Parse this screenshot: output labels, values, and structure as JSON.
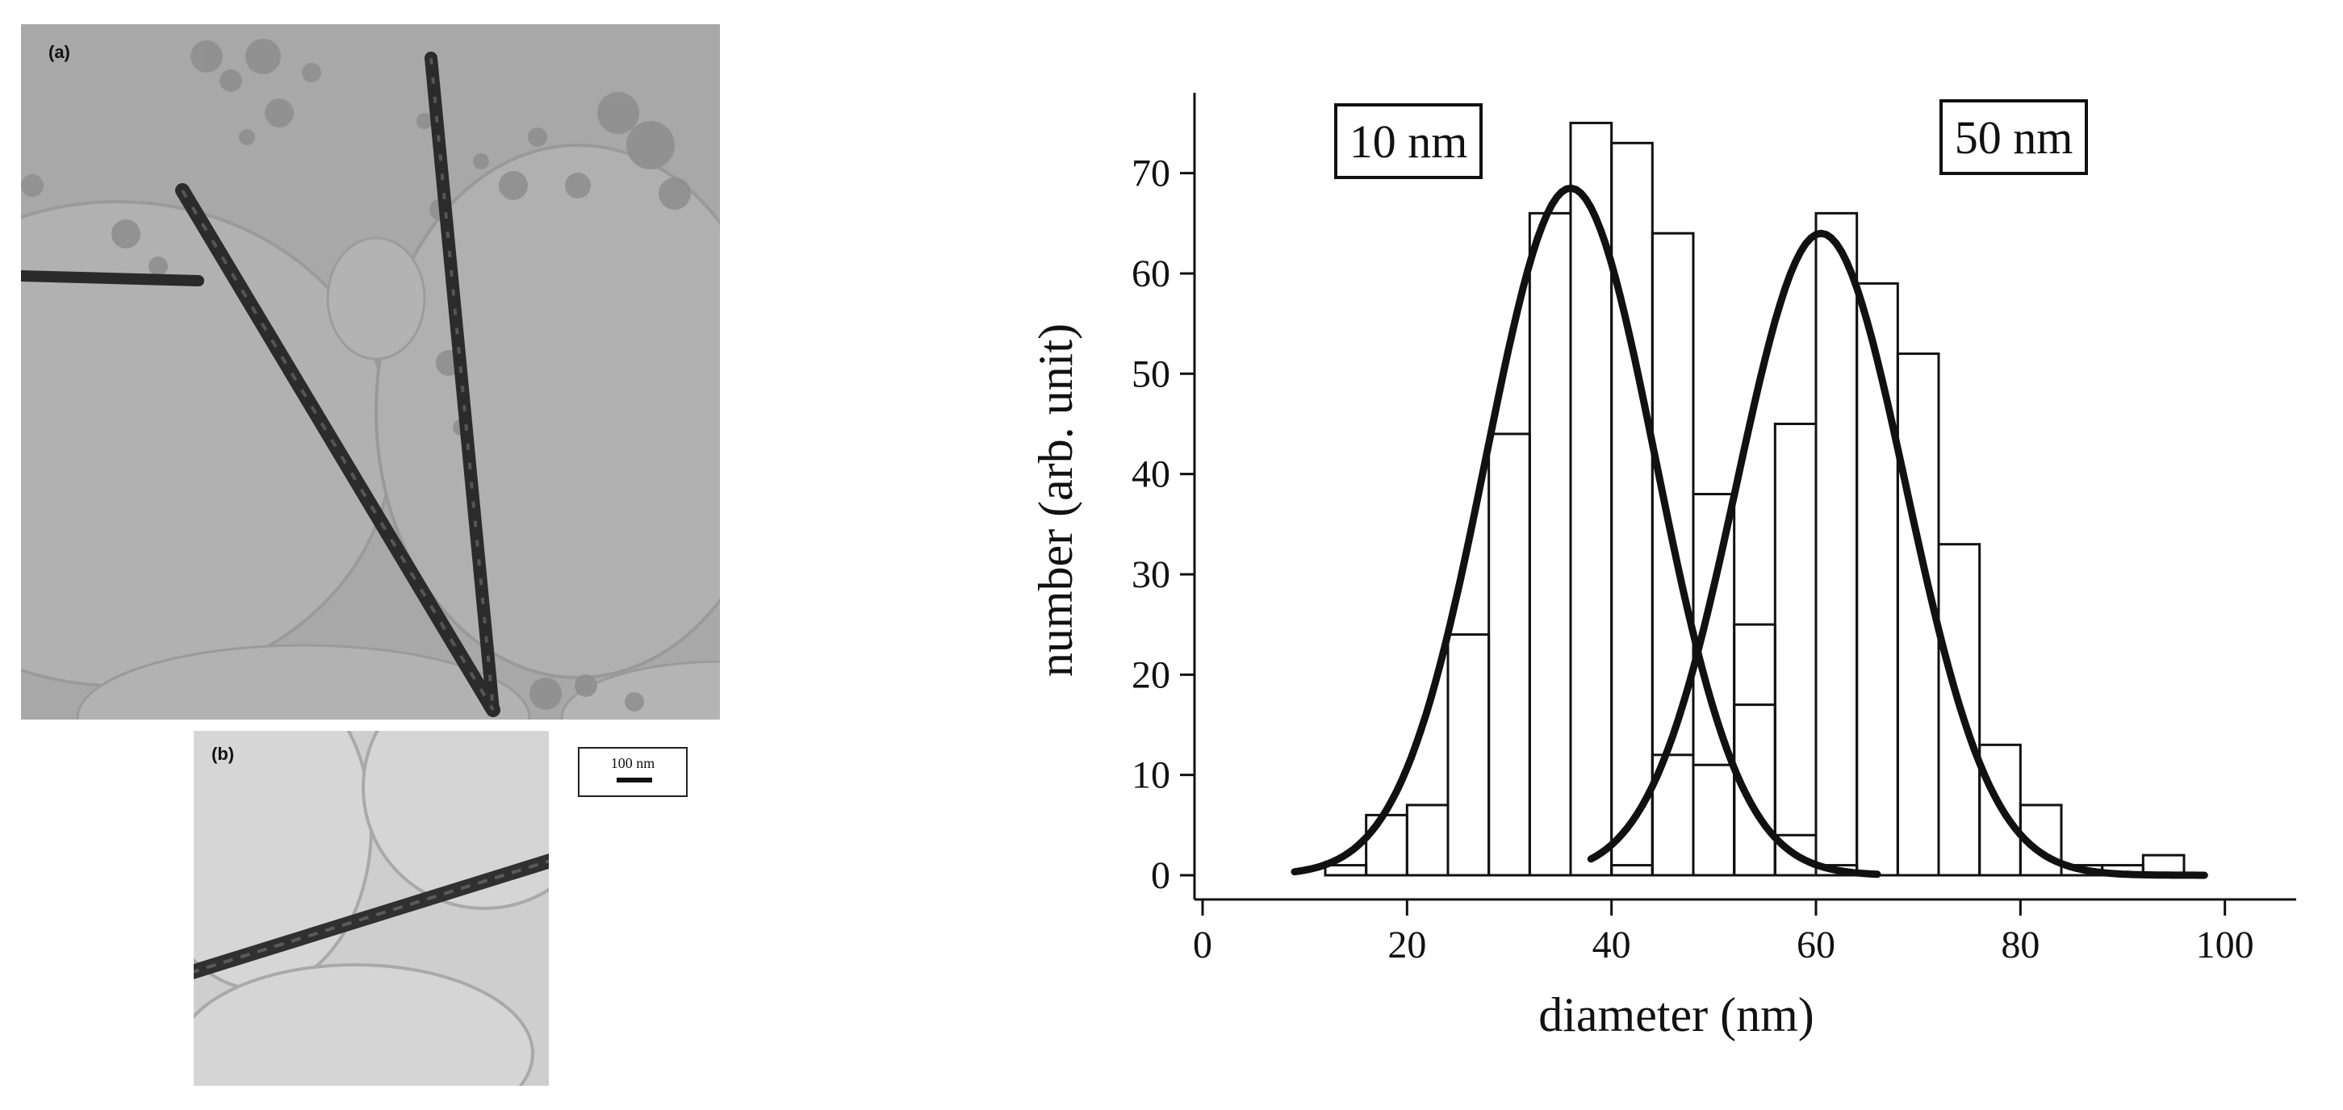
{
  "figure": {
    "panel_a": {
      "label": "(a)"
    },
    "panel_b": {
      "label": "(b)"
    },
    "scale_bar": {
      "text": "100 nm"
    }
  },
  "chart_data": {
    "type": "bar",
    "xlabel": "diameter (nm)",
    "ylabel": "number (arb. unit)",
    "xlim": [
      0,
      105
    ],
    "ylim": [
      0,
      76
    ],
    "xticks": [
      0,
      20,
      40,
      60,
      80,
      100
    ],
    "yticks": [
      0,
      10,
      20,
      30,
      40,
      50,
      60,
      70
    ],
    "bin_width": 4,
    "grid": false,
    "series": [
      {
        "name": "10 nm",
        "bin_starts": [
          12,
          16,
          20,
          24,
          28,
          32,
          36,
          40,
          44,
          48,
          52,
          56,
          60
        ],
        "values": [
          1,
          6,
          7,
          24,
          44,
          66,
          75,
          73,
          64,
          38,
          17,
          4,
          1
        ],
        "fit": {
          "mean": 36,
          "sigma": 8.3,
          "peak": 68.5,
          "x_range": [
            9,
            66
          ]
        }
      },
      {
        "name": "50 nm",
        "bin_starts": [
          40,
          44,
          48,
          52,
          56,
          60,
          64,
          68,
          72,
          76,
          80,
          84,
          88,
          92
        ],
        "values": [
          1,
          12,
          11,
          25,
          45,
          66,
          59,
          52,
          33,
          13,
          7,
          1,
          1,
          2
        ],
        "fit": {
          "mean": 60.5,
          "sigma": 8.3,
          "peak": 64,
          "x_range": [
            38,
            98
          ]
        }
      }
    ]
  }
}
